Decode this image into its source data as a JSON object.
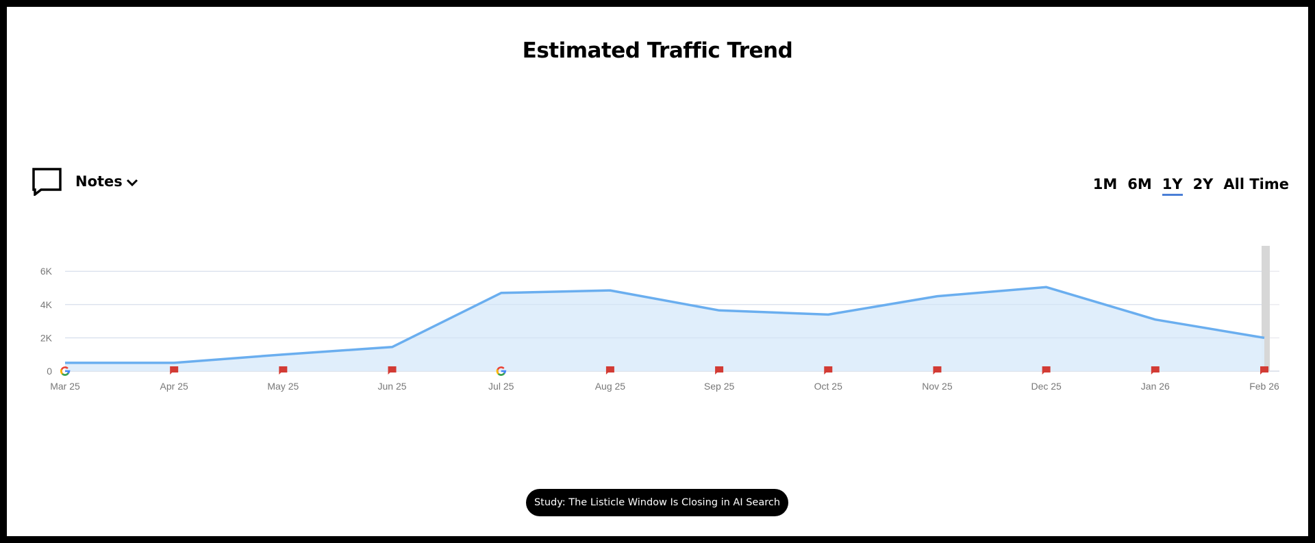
{
  "title": "Estimated Traffic Trend",
  "notes": {
    "label": "Notes",
    "icon": "speech-bubble-icon"
  },
  "range_tabs": [
    {
      "label": "1M",
      "active": false
    },
    {
      "label": "6M",
      "active": false
    },
    {
      "label": "1Y",
      "active": true
    },
    {
      "label": "2Y",
      "active": false
    },
    {
      "label": "All Time",
      "active": false
    }
  ],
  "banner": {
    "label": "Study: The Listicle Window Is Closing in AI Search"
  },
  "colors": {
    "line": "#6aaeef",
    "fill": "#deedfb",
    "marker": "#d23b34",
    "active_tab": "#4a7fd6",
    "highlight_bar": "#d7d7d7"
  },
  "chart_data": {
    "type": "area",
    "title": "Estimated Traffic Trend",
    "xlabel": "",
    "ylabel": "",
    "categories": [
      "Mar 25",
      "Apr 25",
      "May 25",
      "Jun 25",
      "Jul 25",
      "Aug 25",
      "Sep 25",
      "Oct 25",
      "Nov 25",
      "Dec 25",
      "Jan 26",
      "Feb 26"
    ],
    "series": [
      {
        "name": "Estimated Traffic",
        "values": [
          500,
          500,
          1000,
          1450,
          4700,
          4850,
          3650,
          3400,
          4500,
          5050,
          3100,
          2000
        ]
      }
    ],
    "yticks": [
      "0",
      "2K",
      "4K",
      "6K"
    ],
    "ylim": [
      0,
      7500
    ],
    "grid": true,
    "annotations": [
      {
        "x": "Mar 25",
        "type": "google-update"
      },
      {
        "x": "Apr 25",
        "type": "note"
      },
      {
        "x": "May 25",
        "type": "note"
      },
      {
        "x": "Jun 25",
        "type": "note"
      },
      {
        "x": "Jul 25",
        "type": "google-update"
      },
      {
        "x": "Aug 25",
        "type": "note"
      },
      {
        "x": "Sep 25",
        "type": "note"
      },
      {
        "x": "Oct 25",
        "type": "note"
      },
      {
        "x": "Nov 25",
        "type": "note"
      },
      {
        "x": "Dec 25",
        "type": "note"
      },
      {
        "x": "Jan 26",
        "type": "note"
      },
      {
        "x": "Feb 26",
        "type": "note"
      }
    ],
    "highlight": "Feb 26"
  }
}
